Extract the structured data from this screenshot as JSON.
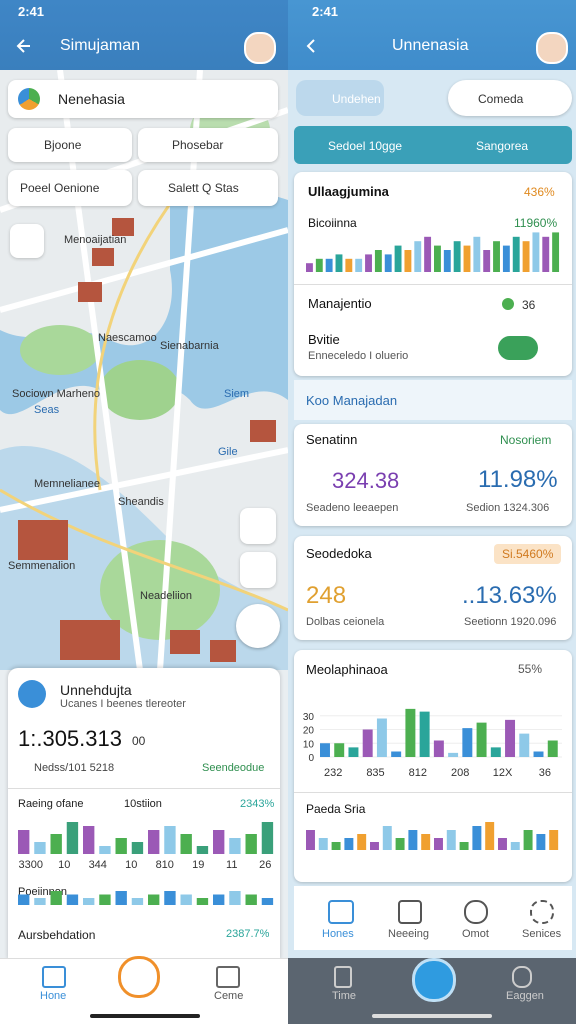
{
  "left": {
    "status_time": "2:41",
    "header_title": "Simujaman",
    "search": "Nenehasia",
    "chips": [
      "Bjoone",
      "Phosebar",
      "Poeel Oenione",
      "Salett Q Stas"
    ],
    "map_labels": [
      "Menoaijatian",
      "Naescamoo",
      "Sienabarnia",
      "Sociown Marheno",
      "Seas",
      "Siem",
      "Gile",
      "Memnelianee",
      "Sheandis",
      "Semmenalion",
      "Neadeliion"
    ],
    "card": {
      "title": "Unnehdujta",
      "subtitle": "Ucanes I beenes tlereoter",
      "big_value": "1:.305.313",
      "big_unit": "00",
      "meta_left": "Nedss/101 5218",
      "meta_right": "Seendeodue",
      "chart1": {
        "title": "Raeing ofane",
        "mid": "10stiion",
        "right": "2343%",
        "values": [
          6,
          3,
          5,
          8,
          7,
          2,
          4,
          3,
          6,
          7,
          5,
          2,
          6,
          4,
          5,
          8
        ],
        "colors": [
          "#9b59b6",
          "#8ec9e8",
          "#4caf50",
          "#3aa07a"
        ],
        "ylim": [
          0,
          10
        ],
        "x_labels": [
          "3300",
          "10",
          "344",
          "10",
          "810",
          "19",
          "11",
          "26"
        ]
      },
      "chart2": {
        "title": "Poeiinnon",
        "values": [
          3,
          2,
          4,
          3,
          2,
          3,
          4,
          2,
          3,
          4,
          3,
          2,
          3,
          4,
          3,
          2
        ],
        "colors": [
          "#3a8fd8",
          "#8ec9e8",
          "#4caf50"
        ],
        "ylim": [
          0,
          10
        ]
      },
      "row3_left": "Aursbehdation",
      "row3_right": "2387.7%"
    },
    "nav": [
      "Hone",
      "Ceme"
    ]
  },
  "right": {
    "status_time": "2:41",
    "header_title": "Unnenasia",
    "pill": "Undehen",
    "dropdown": "Comeda",
    "tabs": [
      "Sedoel 10gge",
      "Sangorea"
    ],
    "card1": {
      "title": "Ullaagjumina",
      "title_value": "436%",
      "sub": "Bicoiinna",
      "sub_value": "11960%",
      "chart": {
        "values": [
          2,
          3,
          3,
          4,
          3,
          3,
          4,
          5,
          4,
          6,
          5,
          7,
          8,
          6,
          5,
          7,
          6,
          8,
          5,
          7,
          6,
          8,
          7,
          9,
          8,
          9
        ],
        "colors": [
          "#9b59b6",
          "#4caf50",
          "#3a8fd8",
          "#2aa59a",
          "#f0a030",
          "#8ec9e8"
        ],
        "ylim": [
          0,
          10
        ]
      },
      "row1": "Manajentio",
      "row1_value": "36",
      "row2": "Bvitie",
      "row2_sub": "Enneceledo I oluerio"
    },
    "section": "Koo Manajadan",
    "card2": {
      "title": "Senatinn",
      "title_right": "Nosoriem",
      "value_left": "324.38",
      "value_right": "11.98%",
      "foot_left": "Seadeno leeaepen",
      "foot_right": "Sedion 1324.306"
    },
    "card3": {
      "title": "Seodedoka",
      "badge": "Si.5460%",
      "value_left": "248",
      "value_right": "..13.63%",
      "foot_left": "Dolbas ceionela",
      "foot_right": "Seetionn 1920.096"
    },
    "card4": {
      "title": "Meolaphinaoa",
      "title_value": "55%",
      "chart": {
        "values": [
          10,
          10,
          7,
          20,
          28,
          4,
          35,
          33,
          12,
          3,
          21,
          25,
          7,
          27,
          17,
          4,
          12
        ],
        "colors": [
          "#3a8fd8",
          "#4caf50",
          "#2aa59a",
          "#9b59b6",
          "#8ec9e8"
        ],
        "ylim": [
          0,
          40
        ],
        "yticks": [
          0,
          10,
          20,
          30
        ],
        "x_labels": [
          "232",
          "835",
          "812",
          "208",
          "12X",
          "36"
        ]
      },
      "sub": "Paeda Sria",
      "chart2": {
        "values": [
          5,
          3,
          2,
          3,
          4,
          2,
          6,
          3,
          5,
          4,
          3,
          5,
          2,
          6,
          7,
          3,
          2,
          5,
          4,
          5
        ],
        "colors": [
          "#9b59b6",
          "#8ec9e8",
          "#4caf50",
          "#3a8fd8",
          "#f0a030"
        ],
        "ylim": [
          0,
          10
        ]
      }
    },
    "inner_nav": [
      "Hones",
      "Neeeing",
      "Omot",
      "Senices"
    ],
    "nav": [
      "Time",
      "Eaggen"
    ]
  }
}
